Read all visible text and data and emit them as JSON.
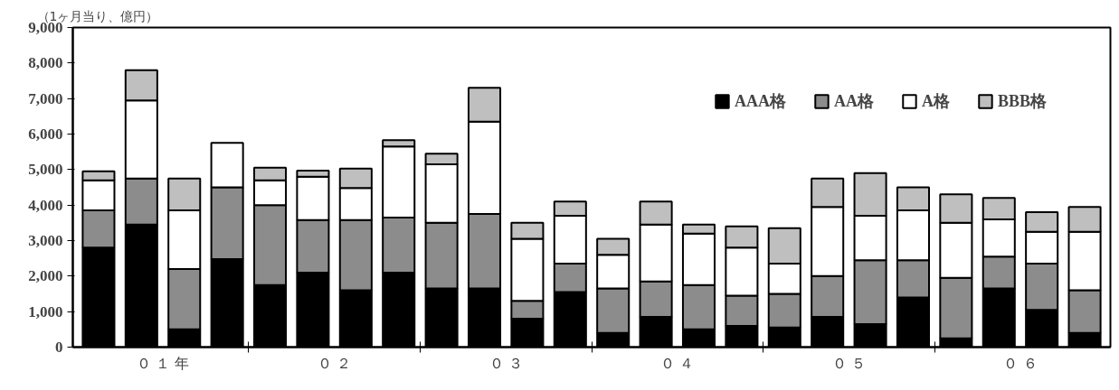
{
  "chart_data": {
    "type": "bar",
    "stacked": true,
    "title": "（1ヶ月当り、億円）",
    "categories": [
      null,
      null,
      null,
      null,
      null,
      null,
      null,
      null,
      null,
      null,
      null,
      null,
      null,
      null,
      null,
      null,
      null,
      null,
      null,
      null,
      null,
      null,
      null,
      null
    ],
    "series": [
      {
        "name": "AAA格",
        "color": "#000000",
        "values": [
          2800,
          3450,
          500,
          2480,
          1750,
          2100,
          1600,
          2100,
          1650,
          1650,
          800,
          1550,
          400,
          850,
          500,
          600,
          550,
          850,
          650,
          1400,
          250,
          1650,
          1050,
          400
        ]
      },
      {
        "name": "AA格",
        "color": "#8c8c8c",
        "values": [
          1050,
          1300,
          1700,
          2020,
          2250,
          1480,
          1980,
          1550,
          1850,
          2100,
          500,
          800,
          1250,
          1000,
          1250,
          850,
          950,
          1150,
          1800,
          1050,
          1700,
          900,
          1300,
          1200
        ]
      },
      {
        "name": "A格",
        "color": "#ffffff",
        "values": [
          850,
          2200,
          1650,
          1250,
          700,
          1220,
          900,
          2000,
          1650,
          2600,
          1750,
          1350,
          950,
          1600,
          1450,
          1350,
          850,
          1950,
          1250,
          1400,
          1550,
          1050,
          900,
          1650
        ]
      },
      {
        "name": "BBB格",
        "color": "#bfbfbf",
        "values": [
          250,
          850,
          900,
          null,
          350,
          170,
          550,
          180,
          300,
          950,
          450,
          400,
          450,
          650,
          250,
          600,
          1000,
          800,
          1200,
          650,
          800,
          600,
          550,
          700
        ]
      }
    ],
    "ylim": [
      0,
      9000
    ],
    "yticks": [
      0,
      {
        "value": 1000,
        "label": "1,000"
      },
      {
        "value": 2000,
        "label": "2,000"
      },
      {
        "value": 3000,
        "label": "3,000"
      },
      {
        "value": 4000,
        "label": "4,000"
      },
      {
        "value": 5000,
        "label": "5,000"
      },
      {
        "value": 6000,
        "label": "6,000"
      },
      {
        "value": 7000,
        "label": "7,000"
      },
      {
        "value": 8000,
        "label": "8,000"
      },
      {
        "value": 9000,
        "label": "9,000"
      }
    ],
    "annotations": [
      "０ １ 年",
      "０ ２",
      "０ ３",
      "０ ４",
      "０ ５",
      "０ ６"
    ],
    "grid": false,
    "legend": "top right"
  }
}
